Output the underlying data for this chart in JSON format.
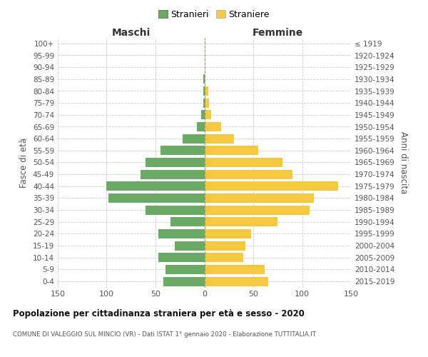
{
  "age_groups": [
    "100+",
    "95-99",
    "90-94",
    "85-89",
    "80-84",
    "75-79",
    "70-74",
    "65-69",
    "60-64",
    "55-59",
    "50-54",
    "45-49",
    "40-44",
    "35-39",
    "30-34",
    "25-29",
    "20-24",
    "15-19",
    "10-14",
    "5-9",
    "0-4"
  ],
  "birth_years": [
    "≤ 1919",
    "1920-1924",
    "1925-1929",
    "1930-1934",
    "1935-1939",
    "1940-1944",
    "1945-1949",
    "1950-1954",
    "1955-1959",
    "1960-1964",
    "1965-1969",
    "1970-1974",
    "1975-1979",
    "1980-1984",
    "1985-1989",
    "1990-1994",
    "1995-1999",
    "2000-2004",
    "2005-2009",
    "2010-2014",
    "2015-2019"
  ],
  "maschi": [
    0,
    0,
    0,
    1,
    1,
    1,
    3,
    8,
    22,
    45,
    60,
    65,
    100,
    98,
    60,
    35,
    47,
    30,
    47,
    40,
    42
  ],
  "femmine": [
    0,
    0,
    0,
    0,
    4,
    5,
    7,
    17,
    30,
    55,
    80,
    90,
    137,
    112,
    108,
    75,
    48,
    42,
    40,
    62,
    65
  ],
  "color_maschi": "#6aaa64",
  "color_femmine": "#f5c842",
  "title1": "Popolazione per cittadinanza straniera per età e sesso - 2020",
  "title2": "COMUNE DI VALEGGIO SUL MINCIO (VR) - Dati ISTAT 1° gennaio 2020 - Elaborazione TUTTITALIA.IT",
  "label_maschi": "Maschi",
  "label_femmine": "Femmine",
  "legend_stranieri": "Stranieri",
  "legend_straniere": "Straniere",
  "ylabel_left": "Fasce di età",
  "ylabel_right": "Anni di nascita",
  "xlim": 150,
  "background_color": "#ffffff",
  "grid_color": "#cccccc"
}
